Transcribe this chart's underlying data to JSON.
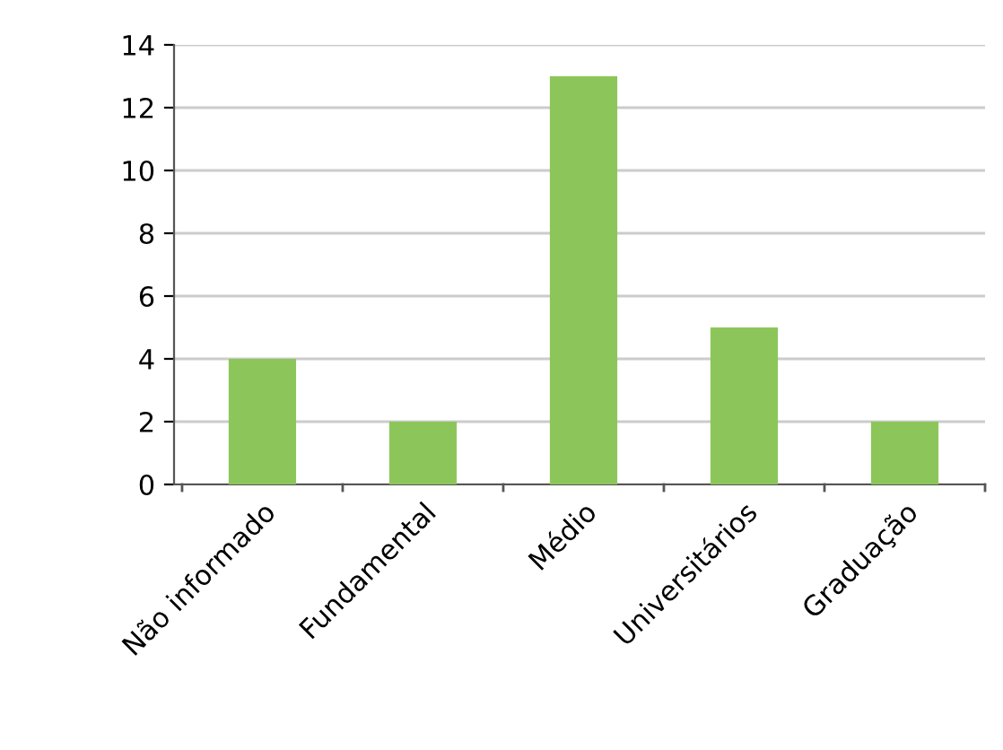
{
  "chart_data": {
    "type": "bar",
    "categories": [
      "Não informado",
      "Fundamental",
      "Médio",
      "Universitários",
      "Graduação"
    ],
    "values": [
      4,
      2,
      13,
      5,
      2
    ],
    "color": "#8cc65a",
    "ylim": [
      0,
      14
    ],
    "yticks": [
      0,
      2,
      4,
      6,
      8,
      10,
      12,
      14
    ],
    "grid": "y",
    "legend": false
  }
}
